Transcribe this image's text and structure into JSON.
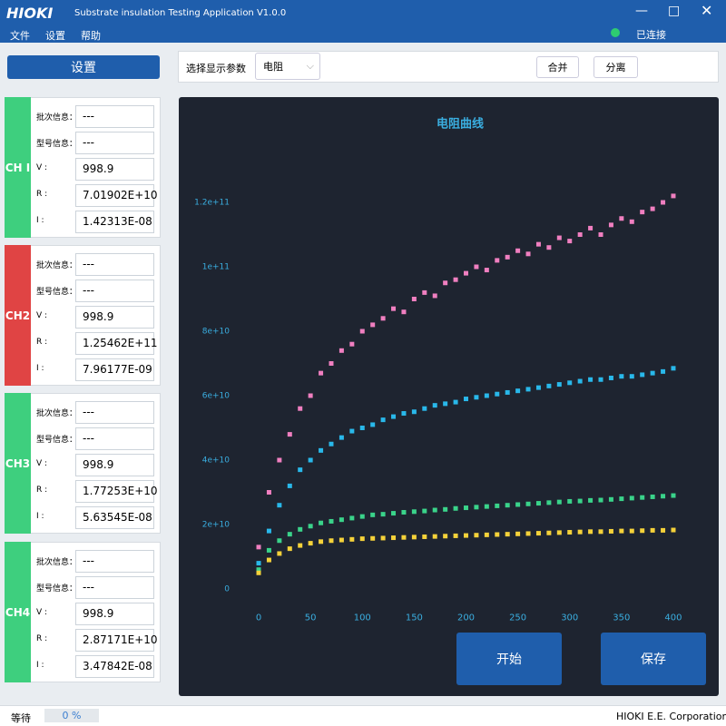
{
  "window": {
    "logo": "HIOKI",
    "title": "Substrate insulation Testing Application V1.0.0"
  },
  "menu": [
    "文件",
    "设置",
    "帮助"
  ],
  "status": "已连接",
  "sidebar": {
    "button": "设置",
    "channels": [
      {
        "label": "CH I",
        "fields": [
          {
            "label": "批次信息：",
            "value": "---"
          },
          {
            "label": "型号信息：",
            "value": "---"
          },
          {
            "label": "V :",
            "value": "998.9"
          },
          {
            "label": "R :",
            "value": "7.01902E+10"
          },
          {
            "label": "I :",
            "value": "1.42313E-08"
          }
        ]
      },
      {
        "label": "CH2",
        "fields": [
          {
            "label": "批次信息：",
            "value": "---"
          },
          {
            "label": "型号信息：",
            "value": "---"
          },
          {
            "label": "V :",
            "value": "998.9"
          },
          {
            "label": "R :",
            "value": "1.25462E+11"
          },
          {
            "label": "I :",
            "value": "7.96177E-09"
          }
        ]
      },
      {
        "label": "CH3",
        "fields": [
          {
            "label": "批次信息：",
            "value": "---"
          },
          {
            "label": "型号信息：",
            "value": "---"
          },
          {
            "label": "V :",
            "value": "998.9"
          },
          {
            "label": "R :",
            "value": "1.77253E+10"
          },
          {
            "label": "I :",
            "value": "5.63545E-08"
          }
        ]
      },
      {
        "label": "CH4",
        "fields": [
          {
            "label": "批次信息：",
            "value": "---"
          },
          {
            "label": "型号信息：",
            "value": "---"
          },
          {
            "label": "V :",
            "value": "998.9"
          },
          {
            "label": "R :",
            "value": "2.87171E+10"
          },
          {
            "label": "I :",
            "value": "3.47842E-08"
          }
        ]
      }
    ]
  },
  "toolbar": {
    "label": "选择显示参数",
    "select": "电阻",
    "buttons": [
      "合并",
      "分离"
    ]
  },
  "chart_data": {
    "type": "scatter",
    "title": "电阻曲线",
    "x": [
      0,
      10,
      20,
      30,
      40,
      50,
      60,
      70,
      80,
      90,
      100,
      110,
      120,
      130,
      140,
      150,
      160,
      170,
      180,
      190,
      200,
      210,
      220,
      230,
      240,
      250,
      260,
      270,
      280,
      290,
      300,
      310,
      320,
      330,
      340,
      350,
      360,
      370,
      380,
      390,
      400
    ],
    "series": [
      {
        "color": "#f07fc0",
        "values": [
          13000000000.0,
          30000000000.0,
          40000000000.0,
          48000000000.0,
          56000000000.0,
          60000000000.0,
          67000000000.0,
          70000000000.0,
          74000000000.0,
          76000000000.0,
          80000000000.0,
          82000000000.0,
          84000000000.0,
          87000000000.0,
          86000000000.0,
          90000000000.0,
          92000000000.0,
          91000000000.0,
          95000000000.0,
          96000000000.0,
          98000000000.0,
          100000000000.0,
          99000000000.0,
          102000000000.0,
          103000000000.0,
          105000000000.0,
          104000000000.0,
          107000000000.0,
          106000000000.0,
          109000000000.0,
          108000000000.0,
          110000000000.0,
          112000000000.0,
          110000000000.0,
          113000000000.0,
          115000000000.0,
          114000000000.0,
          117000000000.0,
          118000000000.0,
          120000000000.0,
          122000000000.0
        ]
      },
      {
        "color": "#29b8ea",
        "values": [
          8000000000.0,
          18000000000.0,
          26000000000.0,
          32000000000.0,
          37000000000.0,
          40000000000.0,
          43000000000.0,
          45000000000.0,
          47000000000.0,
          49000000000.0,
          50000000000.0,
          51000000000.0,
          52500000000.0,
          53500000000.0,
          54500000000.0,
          55000000000.0,
          56000000000.0,
          57000000000.0,
          57500000000.0,
          58000000000.0,
          59000000000.0,
          59500000000.0,
          60000000000.0,
          60500000000.0,
          61000000000.0,
          61500000000.0,
          62000000000.0,
          62500000000.0,
          63000000000.0,
          63500000000.0,
          64000000000.0,
          64500000000.0,
          65000000000.0,
          65000000000.0,
          65500000000.0,
          66000000000.0,
          66000000000.0,
          66500000000.0,
          67000000000.0,
          67500000000.0,
          68500000000.0
        ]
      },
      {
        "color": "#3ad38a",
        "values": [
          6000000000.0,
          12000000000.0,
          15000000000.0,
          17000000000.0,
          18500000000.0,
          19500000000.0,
          20500000000.0,
          21000000000.0,
          21500000000.0,
          22000000000.0,
          22500000000.0,
          23000000000.0,
          23200000000.0,
          23500000000.0,
          23800000000.0,
          24000000000.0,
          24200000000.0,
          24500000000.0,
          24700000000.0,
          25000000000.0,
          25200000000.0,
          25400000000.0,
          25600000000.0,
          25800000000.0,
          26000000000.0,
          26200000000.0,
          26400000000.0,
          26600000000.0,
          26800000000.0,
          27000000000.0,
          27200000000.0,
          27300000000.0,
          27500000000.0,
          27600000000.0,
          27800000000.0,
          28000000000.0,
          28200000000.0,
          28400000000.0,
          28600000000.0,
          28800000000.0,
          29000000000.0
        ]
      },
      {
        "color": "#f5d23a",
        "values": [
          5000000000.0,
          9000000000.0,
          11000000000.0,
          12500000000.0,
          13500000000.0,
          14200000000.0,
          14700000000.0,
          15000000000.0,
          15200000000.0,
          15400000000.0,
          15600000000.0,
          15700000000.0,
          15800000000.0,
          15900000000.0,
          16000000000.0,
          16100000000.0,
          16200000000.0,
          16300000000.0,
          16400000000.0,
          16500000000.0,
          16600000000.0,
          16700000000.0,
          16800000000.0,
          16900000000.0,
          17000000000.0,
          17100000000.0,
          17200000000.0,
          17300000000.0,
          17400000000.0,
          17500000000.0,
          17600000000.0,
          17700000000.0,
          17800000000.0,
          17800000000.0,
          17900000000.0,
          18000000000.0,
          18000000000.0,
          18100000000.0,
          18200000000.0,
          18200000000.0,
          18300000000.0
        ]
      }
    ],
    "xlim": [
      -10,
      410
    ],
    "xticks": [
      0,
      50,
      100,
      150,
      200,
      250,
      300,
      350,
      400
    ],
    "ylim": [
      -10000000000.0,
      130000000000.0
    ],
    "yticks": [
      0,
      {
        "value": 20000000000.0,
        "label": "2e+10"
      },
      {
        "value": 40000000000.0,
        "label": "4e+10"
      },
      {
        "value": 60000000000.0,
        "label": "6e+10"
      },
      {
        "value": 80000000000.0,
        "label": "8e+10"
      },
      {
        "value": 100000000000.0,
        "label": "1e+11"
      },
      {
        "value": 120000000000.0,
        "label": "1.2e+11"
      }
    ],
    "grid": false
  },
  "actions": [
    "开始",
    "保存"
  ],
  "footer": {
    "status": "等待",
    "progress": "0 %",
    "company": "HIOKI E.E. Corporation"
  }
}
